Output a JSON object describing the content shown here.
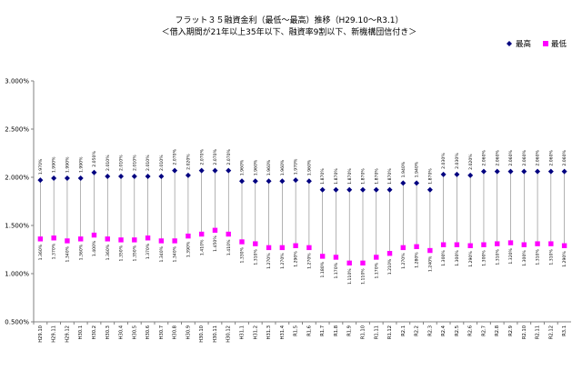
{
  "chart_data": {
    "type": "line",
    "title": "フラット３５融資金利（最低～最高）推移（H29.10～R3.1）",
    "subtitle": "＜借入期間が21年以上35年以下、融資率9割以下、新機構団信付き＞",
    "ylim": [
      0.5,
      3.0
    ],
    "y_ticks": [
      "0.500%",
      "1.000%",
      "1.500%",
      "2.000%",
      "2.500%",
      "3.000%"
    ],
    "y_tick_values": [
      0.5,
      1.0,
      1.5,
      2.0,
      2.5,
      3.0
    ],
    "grid": "none",
    "legend_position": "top-right",
    "colors": {
      "max": "#000080",
      "min": "#ff00ff",
      "dropline": "#808080",
      "axis": "#808080"
    },
    "categories": [
      "H29.10",
      "H29.11",
      "H29.12",
      "H30.1",
      "H30.2",
      "H30.3",
      "H30.4",
      "H30.5",
      "H30.6",
      "H30.7",
      "H30.8",
      "H30.9",
      "H30.10",
      "H30.11",
      "H30.12",
      "H31.1",
      "H31.2",
      "H31.3",
      "H31.4",
      "R1.5",
      "R1.6",
      "R1.7",
      "R1.8",
      "R1.9",
      "R1.10",
      "R1.11",
      "R1.12",
      "R2.1",
      "R2.2",
      "R2.3",
      "R2.4",
      "R2.5",
      "R2.6",
      "R2.7",
      "R2.8",
      "R2.9",
      "R2.10",
      "R2.11",
      "R2.12",
      "R3.1"
    ],
    "series": [
      {
        "name": "最高",
        "values": [
          1.97,
          1.99,
          1.99,
          1.99,
          2.05,
          2.01,
          2.01,
          2.01,
          2.01,
          2.01,
          2.07,
          2.02,
          2.07,
          2.07,
          2.07,
          1.96,
          1.96,
          1.96,
          1.96,
          1.97,
          1.96,
          1.87,
          1.87,
          1.87,
          1.87,
          1.87,
          1.87,
          1.94,
          1.94,
          1.87,
          2.03,
          2.03,
          2.02,
          2.06,
          2.06,
          2.06,
          2.06,
          2.06,
          2.06,
          2.06
        ],
        "labels": [
          "1.970%",
          "1.990%",
          "1.990%",
          "1.990%",
          "2.050%",
          "2.010%",
          "2.010%",
          "2.010%",
          "2.010%",
          "2.010%",
          "2.070%",
          "2.020%",
          "2.070%",
          "2.070%",
          "2.070%",
          "1.960%",
          "1.960%",
          "1.960%",
          "1.960%",
          "1.970%",
          "1.960%",
          "1.870%",
          "1.870%",
          "1.870%",
          "1.870%",
          "1.870%",
          "1.870%",
          "1.940%",
          "1.940%",
          "1.870%",
          "2.030%",
          "2.030%",
          "2.020%",
          "2.060%",
          "2.060%",
          "2.060%",
          "2.060%",
          "2.060%",
          "2.060%",
          "2.060%"
        ]
      },
      {
        "name": "最低",
        "values": [
          1.36,
          1.37,
          1.34,
          1.36,
          1.4,
          1.36,
          1.35,
          1.35,
          1.37,
          1.34,
          1.34,
          1.39,
          1.41,
          1.45,
          1.41,
          1.33,
          1.31,
          1.27,
          1.27,
          1.29,
          1.27,
          1.18,
          1.17,
          1.11,
          1.11,
          1.17,
          1.21,
          1.27,
          1.28,
          1.24,
          1.3,
          1.3,
          1.29,
          1.3,
          1.31,
          1.32,
          1.3,
          1.31,
          1.31,
          1.29
        ],
        "labels": [
          "1.360%",
          "1.370%",
          "1.340%",
          "1.360%",
          "1.400%",
          "1.360%",
          "1.350%",
          "1.350%",
          "1.370%",
          "1.340%",
          "1.340%",
          "1.390%",
          "1.410%",
          "1.450%",
          "1.410%",
          "1.330%",
          "1.310%",
          "1.270%",
          "1.270%",
          "1.290%",
          "1.270%",
          "1.180%",
          "1.170%",
          "1.110%",
          "1.110%",
          "1.170%",
          "1.210%",
          "1.270%",
          "1.280%",
          "1.240%",
          "1.300%",
          "1.300%",
          "1.290%",
          "1.300%",
          "1.310%",
          "1.320%",
          "1.300%",
          "1.310%",
          "1.310%",
          "1.290%"
        ]
      }
    ]
  }
}
